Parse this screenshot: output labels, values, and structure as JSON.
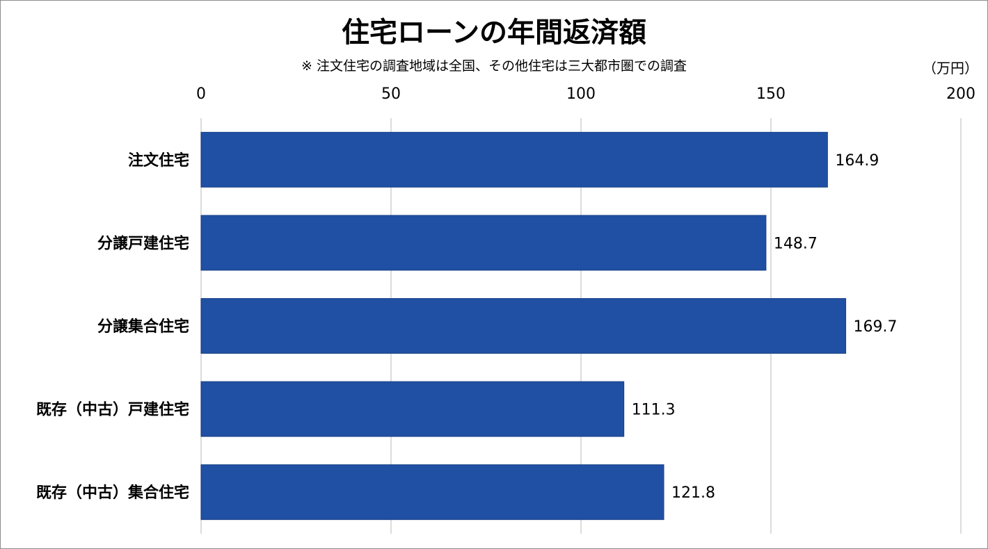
{
  "title": "住宅ローンの年間返済額",
  "subtitle": "※ 注文住宅の調査地域は全国、その他住宅は三大都市圏での調査",
  "unit_label": "（万円）",
  "colors": {
    "bar": "#2050a3",
    "grid": "#d0d0d0"
  },
  "chart_data": {
    "type": "bar",
    "orientation": "horizontal",
    "title": "住宅ローンの年間返済額",
    "subtitle": "※ 注文住宅の調査地域は全国、その他住宅は三大都市圏での調査",
    "unit": "（万円）",
    "categories": [
      "注文住宅",
      "分譲戸建住宅",
      "分譲集合住宅",
      "既存（中古）戸建住宅",
      "既存（中古）集合住宅"
    ],
    "values": [
      164.9,
      148.7,
      169.7,
      111.3,
      121.8
    ],
    "value_labels": [
      "164.9",
      "148.7",
      "169.7",
      "111.3",
      "121.8"
    ],
    "xlim": [
      0,
      200
    ],
    "xticks": [
      0,
      50,
      100,
      150,
      200
    ],
    "xtick_labels": [
      "0",
      "50",
      "100",
      "150",
      "200"
    ],
    "x_axis_position": "top",
    "grid": true,
    "legend": "none"
  }
}
